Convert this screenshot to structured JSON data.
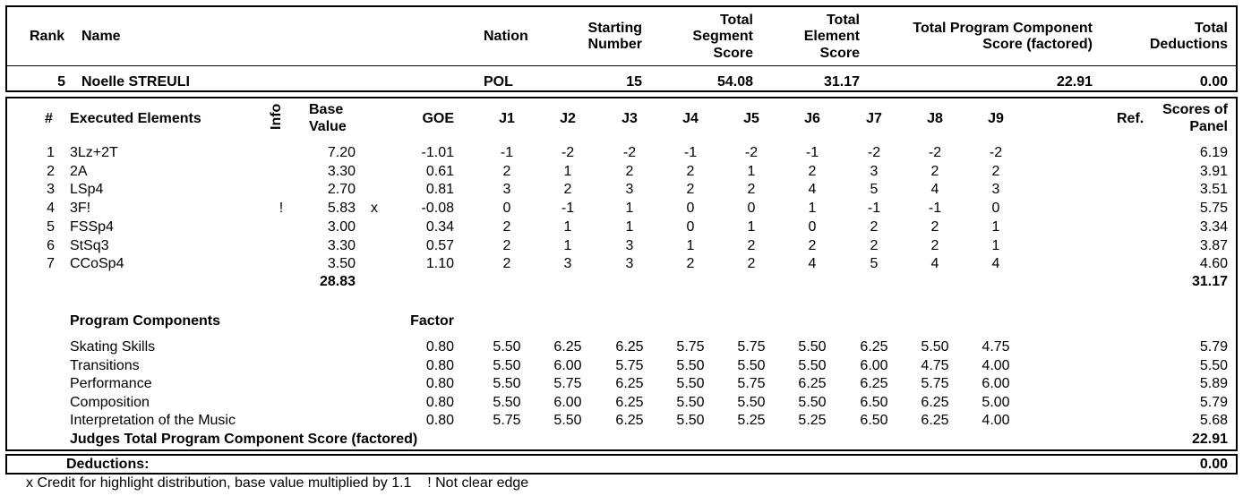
{
  "header": {
    "rank": "Rank",
    "name": "Name",
    "nation": "Nation",
    "starting_number": [
      "Starting",
      "Number"
    ],
    "total_segment": [
      "Total",
      "Segment",
      "Score"
    ],
    "total_element": [
      "Total",
      "Element",
      "Score"
    ],
    "total_pcs": [
      "Total Program Component",
      "Score (factored)"
    ],
    "total_deductions": [
      "Total",
      "Deductions"
    ]
  },
  "skater": {
    "rank": "5",
    "name": "Noelle STREULI",
    "nation": "POL",
    "starting_number": "15",
    "total_segment_score": "54.08",
    "total_element_score": "31.17",
    "total_pcs": "22.91",
    "total_deductions": "0.00"
  },
  "elements_header": {
    "num": "#",
    "executed": "Executed Elements",
    "info": "Info",
    "base_value": [
      "Base",
      "Value"
    ],
    "goe": "GOE",
    "judges": [
      "J1",
      "J2",
      "J3",
      "J4",
      "J5",
      "J6",
      "J7",
      "J8",
      "J9"
    ],
    "ref": "Ref.",
    "scores_of_panel": [
      "Scores of",
      "Panel"
    ]
  },
  "elements": [
    {
      "num": "1",
      "name": "3Lz+2T",
      "info": "",
      "bv": "7.20",
      "x": "",
      "goe": "-1.01",
      "j": [
        "-1",
        "-2",
        "-2",
        "-1",
        "-2",
        "-1",
        "-2",
        "-2",
        "-2"
      ],
      "score": "6.19"
    },
    {
      "num": "2",
      "name": "2A",
      "info": "",
      "bv": "3.30",
      "x": "",
      "goe": "0.61",
      "j": [
        "2",
        "1",
        "2",
        "2",
        "1",
        "2",
        "3",
        "2",
        "2"
      ],
      "score": "3.91"
    },
    {
      "num": "3",
      "name": "LSp4",
      "info": "",
      "bv": "2.70",
      "x": "",
      "goe": "0.81",
      "j": [
        "3",
        "2",
        "3",
        "2",
        "2",
        "4",
        "5",
        "4",
        "3"
      ],
      "score": "3.51"
    },
    {
      "num": "4",
      "name": "3F!",
      "info": "!",
      "bv": "5.83",
      "x": "x",
      "goe": "-0.08",
      "j": [
        "0",
        "-1",
        "1",
        "0",
        "0",
        "1",
        "-1",
        "-1",
        "0"
      ],
      "score": "5.75"
    },
    {
      "num": "5",
      "name": "FSSp4",
      "info": "",
      "bv": "3.00",
      "x": "",
      "goe": "0.34",
      "j": [
        "2",
        "1",
        "1",
        "0",
        "1",
        "0",
        "2",
        "2",
        "1"
      ],
      "score": "3.34"
    },
    {
      "num": "6",
      "name": "StSq3",
      "info": "",
      "bv": "3.30",
      "x": "",
      "goe": "0.57",
      "j": [
        "2",
        "1",
        "3",
        "1",
        "2",
        "2",
        "2",
        "2",
        "1"
      ],
      "score": "3.87"
    },
    {
      "num": "7",
      "name": "CCoSp4",
      "info": "",
      "bv": "3.50",
      "x": "",
      "goe": "1.10",
      "j": [
        "2",
        "3",
        "3",
        "2",
        "2",
        "4",
        "5",
        "4",
        "4"
      ],
      "score": "4.60"
    }
  ],
  "elements_total_bv": "28.83",
  "elements_total_score": "31.17",
  "pc_header": {
    "title": "Program Components",
    "factor": "Factor"
  },
  "components": [
    {
      "name": "Skating Skills",
      "factor": "0.80",
      "j": [
        "5.50",
        "6.25",
        "6.25",
        "5.75",
        "5.75",
        "5.50",
        "6.25",
        "5.50",
        "4.75"
      ],
      "score": "5.79"
    },
    {
      "name": "Transitions",
      "factor": "0.80",
      "j": [
        "5.50",
        "6.00",
        "5.75",
        "5.50",
        "5.50",
        "5.50",
        "6.00",
        "4.75",
        "4.00"
      ],
      "score": "5.50"
    },
    {
      "name": "Performance",
      "factor": "0.80",
      "j": [
        "5.50",
        "5.75",
        "6.25",
        "5.50",
        "5.75",
        "6.25",
        "6.25",
        "5.75",
        "6.00"
      ],
      "score": "5.89"
    },
    {
      "name": "Composition",
      "factor": "0.80",
      "j": [
        "5.50",
        "6.00",
        "6.25",
        "5.50",
        "5.50",
        "5.50",
        "6.50",
        "6.25",
        "5.00"
      ],
      "score": "5.79"
    },
    {
      "name": "Interpretation of the Music",
      "factor": "0.80",
      "j": [
        "5.75",
        "5.50",
        "6.25",
        "5.50",
        "5.25",
        "5.25",
        "6.50",
        "6.25",
        "4.00"
      ],
      "score": "5.68"
    }
  ],
  "pc_total_label": "Judges Total Program Component Score (factored)",
  "pc_total": "22.91",
  "deductions_label": "Deductions:",
  "deductions_value": "0.00",
  "footnote": "x Credit for highlight distribution, base value multiplied by 1.1    ! Not clear edge"
}
